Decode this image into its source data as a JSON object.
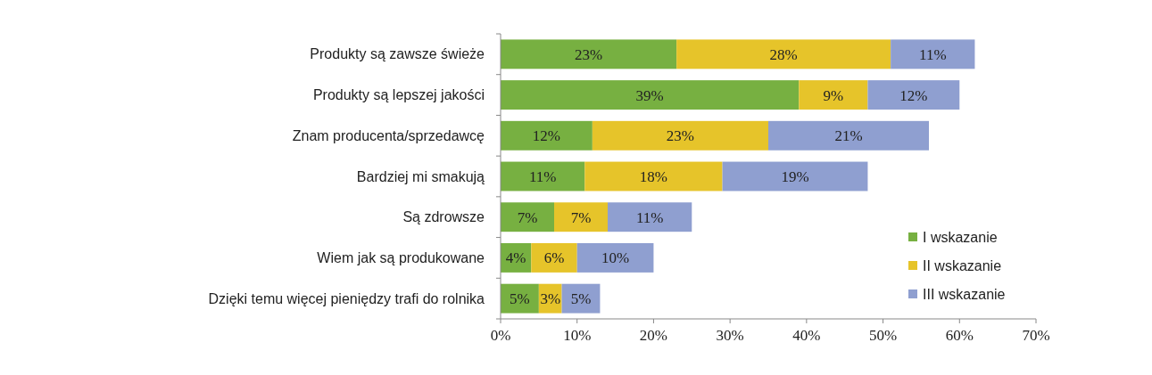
{
  "chart_data": {
    "type": "bar",
    "orientation": "horizontal",
    "stacked": true,
    "categories": [
      "Produkty są zawsze świeże",
      "Produkty są lepszej jakości",
      "Znam producenta/sprzedawcę",
      "Bardziej mi smakują",
      "Są zdrowsze",
      "Wiem jak są produkowane",
      "Dzięki temu więcej pieniędzy trafi do rolnika"
    ],
    "series": [
      {
        "name": "I wskazanie",
        "color": "#77b041",
        "values": [
          23,
          39,
          12,
          11,
          7,
          4,
          5
        ],
        "value_labels": [
          "23%",
          "39%",
          "12%",
          "11%",
          "7%",
          "4%",
          "5%"
        ]
      },
      {
        "name": "II wskazanie",
        "color": "#e6c42a",
        "values": [
          28,
          9,
          23,
          18,
          7,
          6,
          3
        ],
        "value_labels": [
          "28%",
          "9%",
          "23%",
          "18%",
          "7%",
          "6%",
          "3%"
        ]
      },
      {
        "name": "III wskazanie",
        "color": "#8f9fd0",
        "values": [
          11,
          12,
          21,
          19,
          11,
          10,
          5
        ],
        "value_labels": [
          "11%",
          "12%",
          "21%",
          "19%",
          "11%",
          "10%",
          "5%"
        ]
      }
    ],
    "xlim": [
      0,
      70
    ],
    "xticks": [
      {
        "value": 0,
        "label": "0%"
      },
      {
        "value": 10,
        "label": "10%"
      },
      {
        "value": 20,
        "label": "20%"
      },
      {
        "value": 30,
        "label": "30%"
      },
      {
        "value": 40,
        "label": "40%"
      },
      {
        "value": 50,
        "label": "50%"
      },
      {
        "value": 60,
        "label": "60%"
      },
      {
        "value": 70,
        "label": "70%"
      }
    ],
    "legend": "bottom right",
    "grid": false
  }
}
